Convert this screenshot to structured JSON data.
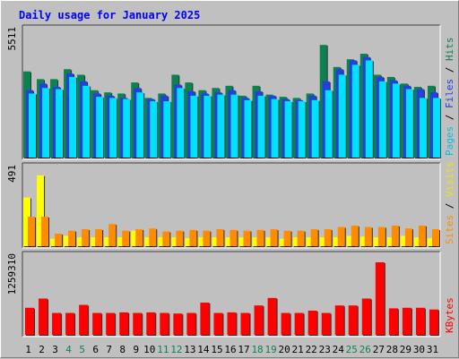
{
  "chart_data": {
    "type": "bar",
    "title": "Daily usage for January 2025",
    "categories": [
      "1",
      "2",
      "3",
      "4",
      "5",
      "6",
      "7",
      "8",
      "9",
      "10",
      "11",
      "12",
      "13",
      "14",
      "15",
      "16",
      "17",
      "18",
      "19",
      "20",
      "21",
      "22",
      "23",
      "24",
      "25",
      "26",
      "27",
      "28",
      "29",
      "30",
      "31"
    ],
    "weekend_days": [
      "4",
      "5",
      "11",
      "12",
      "18",
      "19",
      "25",
      "26"
    ],
    "panels": [
      {
        "name": "hits-files-pages",
        "ymax_label": "5511",
        "ymax": 5511,
        "axis_labels": [
          "Pages",
          "Files",
          "Hits"
        ],
        "series": [
          {
            "name": "Hits",
            "color": "#0f8050",
            "values": [
              3900,
              3550,
              3550,
              4000,
              3750,
              3050,
              2950,
              2900,
              3400,
              2700,
              2900,
              3750,
              3400,
              3050,
              3150,
              3250,
              2800,
              3250,
              2850,
              2750,
              2700,
              2900,
              5100,
              4100,
              4450,
              4700,
              3750,
              3650,
              3350,
              3200,
              3250
            ]
          },
          {
            "name": "Files",
            "color": "#2040e0",
            "values": [
              3050,
              3350,
              3200,
              3800,
              3450,
              2900,
              2800,
              2700,
              3150,
              2650,
              2800,
              3300,
              3000,
              2900,
              2950,
              3050,
              2700,
              3000,
              2800,
              2650,
              2600,
              2800,
              3450,
              4000,
              4400,
              4550,
              3650,
              3500,
              3250,
              3100,
              2950
            ]
          },
          {
            "name": "Pages",
            "color": "#00e0ff",
            "values": [
              2900,
              3150,
              3100,
              3650,
              3250,
              2750,
              2700,
              2650,
              2950,
              2550,
              2550,
              3150,
              2800,
              2800,
              2850,
              2850,
              2600,
              2800,
              2650,
              2550,
              2550,
              2600,
              3050,
              3750,
              4200,
              4400,
              3450,
              3350,
              3100,
              2700,
              2700
            ]
          }
        ]
      },
      {
        "name": "visits-sites",
        "ymax_label": "491",
        "ymax": 491,
        "axis_labels": [
          "Sites",
          "Visits"
        ],
        "series": [
          {
            "name": "Visits",
            "color": "#ffff00",
            "values": [
              330,
              480,
              50,
              70,
              60,
              60,
              60,
              60,
              105,
              60,
              60,
              60,
              55,
              60,
              60,
              60,
              60,
              60,
              60,
              50,
              60,
              60,
              60,
              60,
              70,
              65,
              60,
              60,
              70,
              60,
              55
            ]
          },
          {
            "name": "Sites",
            "color": "#ff8c00",
            "values": [
              200,
              200,
              85,
              105,
              115,
              115,
              150,
              105,
              115,
              120,
              100,
              105,
              110,
              105,
              115,
              110,
              105,
              110,
              115,
              105,
              105,
              115,
              115,
              130,
              140,
              130,
              130,
              140,
              120,
              140,
              115
            ]
          }
        ]
      },
      {
        "name": "kbytes",
        "ymax_label": "1259310",
        "ymax": 1259310,
        "axis_labels": [
          "KBytes"
        ],
        "series": [
          {
            "name": "KBytes",
            "color": "#ff0000",
            "values": [
              470000,
              630000,
              380000,
              380000,
              520000,
              380000,
              380000,
              390000,
              380000,
              390000,
              380000,
              370000,
              380000,
              560000,
              380000,
              390000,
              380000,
              510000,
              640000,
              380000,
              380000,
              420000,
              380000,
              510000,
              510000,
              630000,
              1259310,
              460000,
              470000,
              470000,
              440000
            ]
          }
        ]
      }
    ]
  }
}
